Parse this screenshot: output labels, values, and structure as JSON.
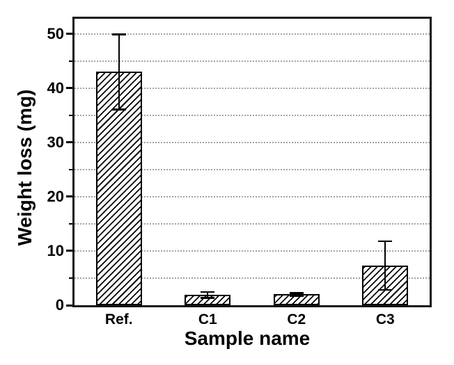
{
  "chart_data": {
    "type": "bar",
    "title": "",
    "xlabel": "Sample name",
    "ylabel": "Weight loss (mg)",
    "categories": [
      "Ref.",
      "C1",
      "C2",
      "C3"
    ],
    "values": [
      43.0,
      1.9,
      2.0,
      7.3
    ],
    "error_plus": [
      6.9,
      0.55,
      0.25,
      4.5
    ],
    "error_minus": [
      6.9,
      0.55,
      0.25,
      4.5
    ],
    "ylim": [
      0,
      52.8
    ],
    "yticks_major": [
      0,
      10,
      20,
      30,
      40,
      50
    ],
    "yticks_minor": [
      5,
      15,
      25,
      35,
      45
    ],
    "gridlines_at": [
      5,
      10,
      15,
      20,
      25,
      30,
      35,
      40,
      45,
      50
    ],
    "grid_style": "horizontal dotted",
    "legend": "none",
    "bar_fill": "white with black diagonal hatch (/)",
    "colors": {
      "bar_edge": "#000000",
      "hatch": "#000000",
      "grid": "#a3a3a3",
      "frame": "#141414",
      "text": "#000000",
      "background": "#ffffff"
    }
  }
}
